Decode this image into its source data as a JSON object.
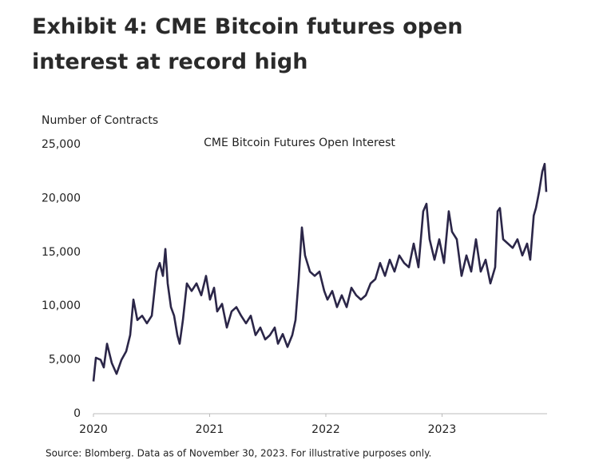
{
  "chart_data": {
    "type": "line",
    "title": "Exhibit 4: CME Bitcoin futures open interest at record high",
    "y_label": "Number of Contracts",
    "source": "Source: Blomberg. Data as of November 30, 2023. For illustrative purposes only.",
    "x": [
      2020.0,
      2020.021,
      2020.062,
      2020.089,
      2020.117,
      2020.158,
      2020.199,
      2020.241,
      2020.282,
      2020.316,
      2020.344,
      2020.378,
      2020.419,
      2020.46,
      2020.502,
      2020.543,
      2020.57,
      2020.598,
      2020.619,
      2020.639,
      2020.667,
      2020.694,
      2020.722,
      2020.742,
      2020.77,
      2020.804,
      2020.845,
      2020.887,
      2020.928,
      2020.969,
      2021.003,
      2021.038,
      2021.065,
      2021.107,
      2021.148,
      2021.189,
      2021.23,
      2021.271,
      2021.313,
      2021.354,
      2021.395,
      2021.436,
      2021.478,
      2021.519,
      2021.56,
      2021.588,
      2021.629,
      2021.67,
      2021.711,
      2021.739,
      2021.766,
      2021.794,
      2021.821,
      2021.863,
      2021.904,
      2021.945,
      2021.986,
      2022.014,
      2022.055,
      2022.096,
      2022.137,
      2022.179,
      2022.22,
      2022.261,
      2022.302,
      2022.344,
      2022.385,
      2022.426,
      2022.467,
      2022.509,
      2022.55,
      2022.591,
      2022.632,
      2022.674,
      2022.715,
      2022.756,
      2022.797,
      2022.838,
      2022.866,
      2022.893,
      2022.935,
      2022.976,
      2023.017,
      2023.058,
      2023.086,
      2023.127,
      2023.168,
      2023.21,
      2023.251,
      2023.292,
      2023.333,
      2023.375,
      2023.416,
      2023.457,
      2023.478,
      2023.498,
      2023.526,
      2023.567,
      2023.608,
      2023.649,
      2023.691,
      2023.732,
      2023.759,
      2023.789,
      2023.808,
      2023.835,
      2023.863,
      2023.883,
      2023.897
    ],
    "series": [
      {
        "name": "CME Bitcoin Futures Open Interest",
        "color": "#2b2648",
        "values": [
          3000,
          5200,
          5000,
          4300,
          6500,
          4700,
          3700,
          5000,
          5800,
          7300,
          10600,
          8700,
          9100,
          8400,
          9100,
          13200,
          14000,
          12800,
          15300,
          12100,
          9900,
          9100,
          7300,
          6500,
          8700,
          12100,
          11400,
          12100,
          11000,
          12800,
          10600,
          11700,
          9500,
          10200,
          8000,
          9500,
          9900,
          9100,
          8400,
          9100,
          7300,
          8000,
          6900,
          7300,
          8000,
          6500,
          7400,
          6200,
          7300,
          8700,
          12500,
          17300,
          14700,
          13200,
          12800,
          13200,
          11400,
          10600,
          11400,
          9900,
          11000,
          9900,
          11700,
          11000,
          10600,
          11000,
          12100,
          12500,
          14000,
          12800,
          14300,
          13200,
          14700,
          14000,
          13600,
          15800,
          13600,
          18800,
          19500,
          16200,
          14300,
          16200,
          14000,
          18800,
          16900,
          16200,
          12800,
          14700,
          13200,
          16200,
          13200,
          14300,
          12100,
          13600,
          18800,
          19100,
          16200,
          15800,
          15400,
          16200,
          14700,
          15800,
          14300,
          18400,
          19100,
          20600,
          22500,
          23200,
          20600
        ]
      }
    ],
    "xlim": [
      2020,
      2023.904
    ],
    "xticks": [
      2020,
      2021,
      2022,
      2023
    ],
    "ylim": [
      0,
      25000
    ],
    "yticks": [
      0,
      {
        "value": 5000,
        "label": "5,000"
      },
      {
        "value": 10000,
        "label": "10,000"
      },
      {
        "value": 15000,
        "label": "15,000"
      },
      {
        "value": 20000,
        "label": "20,000"
      },
      {
        "value": 25000,
        "label": "25,000"
      }
    ]
  }
}
